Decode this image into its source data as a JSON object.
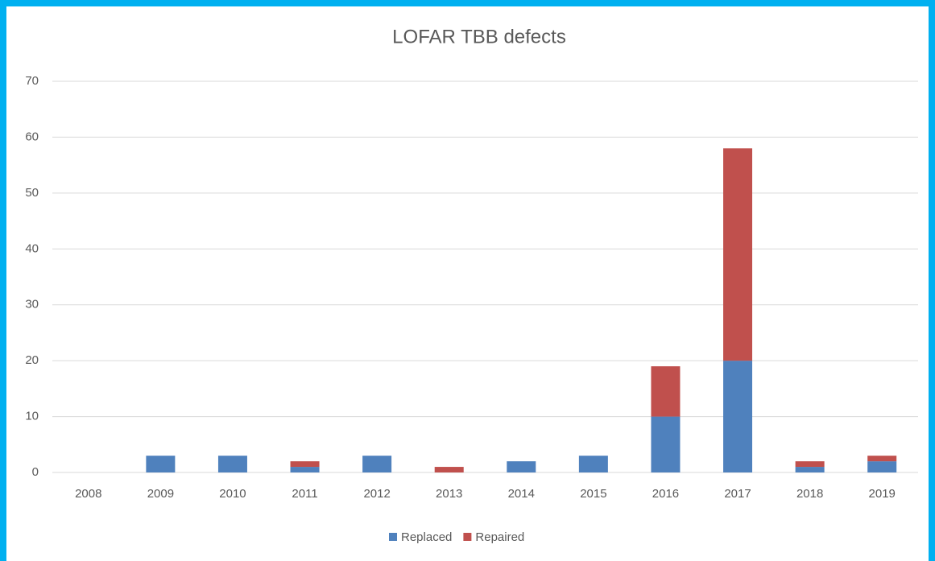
{
  "chart_data": {
    "type": "stacked_bar",
    "title": "LOFAR TBB defects",
    "categories": [
      "2008",
      "2009",
      "2010",
      "2011",
      "2012",
      "2013",
      "2014",
      "2015",
      "2016",
      "2017",
      "2018",
      "2019"
    ],
    "series": [
      {
        "name": "Replaced",
        "color": "#4f81bd",
        "values": [
          0,
          3,
          3,
          1,
          3,
          0,
          2,
          3,
          10,
          20,
          1,
          2
        ]
      },
      {
        "name": "Repaired",
        "color": "#c0504d",
        "values": [
          0,
          0,
          0,
          1,
          0,
          1,
          0,
          0,
          9,
          38,
          1,
          1
        ]
      }
    ],
    "ylim": [
      0,
      70
    ],
    "yticks": [
      0,
      10,
      20,
      30,
      40,
      50,
      60,
      70
    ],
    "grid": true,
    "legend": "bottom"
  }
}
